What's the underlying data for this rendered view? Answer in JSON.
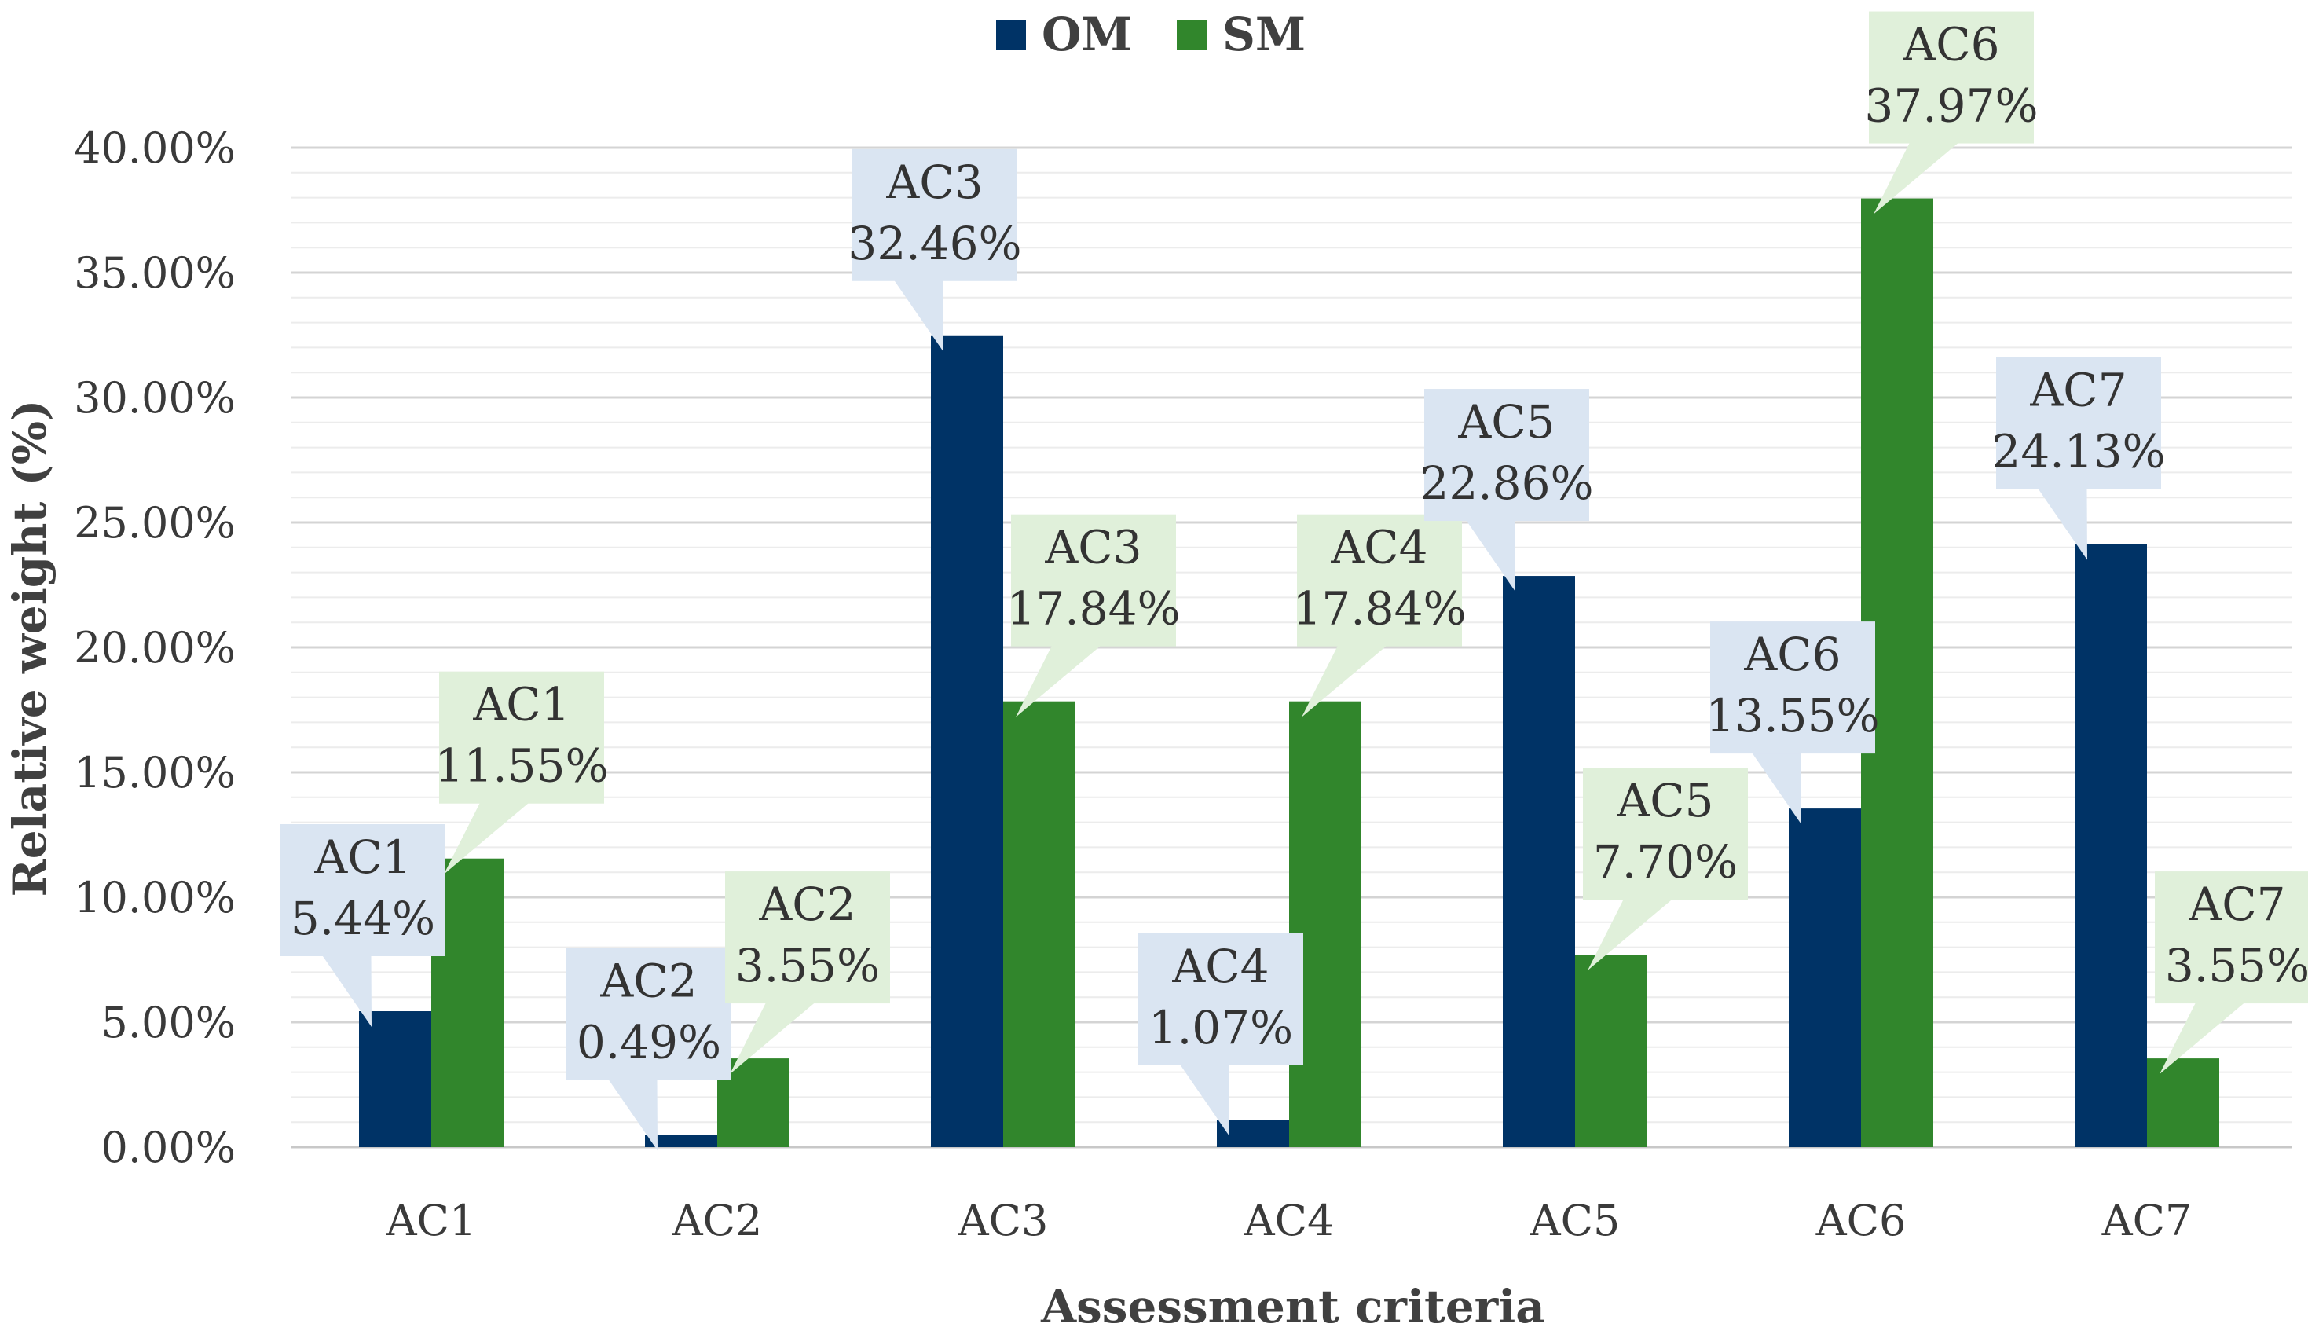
{
  "chart_data": {
    "type": "bar",
    "title": "",
    "categories": [
      "AC1",
      "AC2",
      "AC3",
      "AC4",
      "AC5",
      "AC6",
      "AC7"
    ],
    "series": [
      {
        "name": "OM",
        "color": "#003366",
        "callout_color": "#dae5f2",
        "values": [
          5.44,
          0.49,
          32.46,
          1.07,
          22.86,
          13.55,
          24.13
        ],
        "labels": [
          "5.44%",
          "0.49%",
          "32.46%",
          "1.07%",
          "22.86%",
          "13.55%",
          "24.13%"
        ]
      },
      {
        "name": "SM",
        "color": "#31862c",
        "callout_color": "#e0f0da",
        "values": [
          11.55,
          3.55,
          17.84,
          17.84,
          7.7,
          37.97,
          3.55
        ],
        "labels": [
          "11.55%",
          "3.55%",
          "17.84%",
          "17.84%",
          "7.70%",
          "37.97%",
          "3.55%"
        ]
      }
    ],
    "xlabel": "Assessment criteria",
    "ylabel": "Relative weight (%)",
    "ylim": [
      0,
      40
    ],
    "ytick_step": 5,
    "ytick_labels": [
      "0.00%",
      "5.00%",
      "10.00%",
      "15.00%",
      "20.00%",
      "25.00%",
      "30.00%",
      "35.00%",
      "40.00%"
    ],
    "grid": true,
    "legend_position": "top-center"
  }
}
